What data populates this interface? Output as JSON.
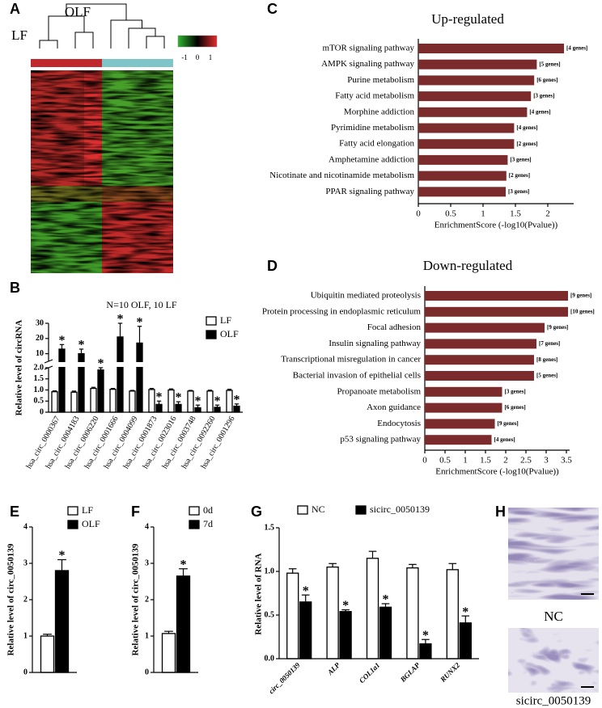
{
  "heatmap": {
    "panel": "A",
    "groups": [
      "LF",
      "OLF"
    ],
    "colorbar_lim": [
      -1.5,
      1.5
    ],
    "colorbar_ticks": [
      -1,
      0,
      1
    ]
  },
  "chart_data": [
    {
      "type": "bar",
      "panel": "B",
      "subtitle": "N=10 OLF, 10 LF",
      "ylabel": "Relative level of circRNA",
      "categories": [
        "hsa_circ_0000367",
        "hsa_circ_0004183",
        "hsa_circ_0006220",
        "hsa_circ_0001666",
        "hsa_circ_0004099",
        "hsa_circ_0001873",
        "hsa_circ_0023016",
        "hsa_circ_0003748",
        "hsa_circ_0092260",
        "hsa_circ_0001296"
      ],
      "series": [
        {
          "name": "LF",
          "color": "#ffffff",
          "values": [
            0.92,
            0.9,
            1.07,
            1.03,
            0.95,
            1.02,
            1.0,
            0.95,
            0.95,
            0.98
          ],
          "errors": [
            0.04,
            0.05,
            0.05,
            0.04,
            0.03,
            0.05,
            0.05,
            0.03,
            0.04,
            0.05
          ]
        },
        {
          "name": "OLF",
          "color": "#000000",
          "values": [
            13,
            10,
            1.9,
            21,
            17,
            0.35,
            0.35,
            0.2,
            0.22,
            0.27
          ],
          "errors": [
            3,
            3,
            0.1,
            9,
            11,
            0.15,
            0.12,
            0.12,
            0.1,
            0.1
          ],
          "sig_labels": [
            "*",
            "*",
            "*",
            "*",
            "*",
            "*",
            "*",
            "*",
            "*",
            "*"
          ]
        }
      ],
      "ylim": [
        0,
        30
      ],
      "ybreak": [
        2,
        5
      ],
      "yticks": [
        0,
        0.5,
        {
          "value": 1,
          "label": "1.0"
        },
        1.5,
        {
          "value": 2,
          "label": "2.0"
        },
        10,
        20,
        30
      ],
      "legend": "upper right"
    },
    {
      "type": "hbar",
      "panel": "C",
      "title": "Up-regulated",
      "xlabel": "EnrichmentScore (-log10(Pvalue))",
      "categories": [
        "mTOR signaling pathway",
        "AMPK signaling pathway",
        "Purine metabolism",
        "Fatty acid metabolism",
        "Morphine addiction",
        "Pyrimidine metabolism",
        "Fatty acid elongation",
        "Amphetamine addiction",
        "Nicotinate and nicotinamide metabolism",
        "PPAR signaling pathway"
      ],
      "values": [
        2.25,
        1.83,
        1.79,
        1.74,
        1.68,
        1.48,
        1.48,
        1.38,
        1.36,
        1.35
      ],
      "annotations": [
        "[4 genes]",
        "[5 genes]",
        "[6 genes]",
        "[3 genes]",
        "[4 genes]",
        "[4 genes]",
        "[2 genes]",
        "[3 genes]",
        "[2 genes]",
        "[3 genes]"
      ],
      "color": "#7b2b2b",
      "xlim": [
        0,
        2.4
      ],
      "xticks": [
        0,
        0.5,
        1,
        1.5,
        2
      ]
    },
    {
      "type": "hbar",
      "panel": "D",
      "title": "Down-regulated",
      "xlabel": "EnrichmentScore (-log10(Pvalue))",
      "categories": [
        "Ubiquitin mediated proteolysis",
        "Protein processing in endoplasmic reticulum",
        "Focal adhesion",
        "Insulin signaling pathway",
        "Transcriptional misregulation in cancer",
        "Bacterial invasion of epithelial cells",
        "Propanoate metabolism",
        "Axon guidance",
        "Endocytosis",
        "p53 signaling pathway"
      ],
      "values": [
        3.54,
        3.54,
        2.96,
        2.76,
        2.7,
        2.7,
        1.91,
        1.91,
        1.73,
        1.65
      ],
      "annotations": [
        "[9 genes]",
        "[10 genes]",
        "[9 genes]",
        "[7 genes]",
        "[8 genes]",
        "[5 genes]",
        "[3 genes]",
        "[6 genes]",
        "[9 genes]",
        "[4 genes]"
      ],
      "color": "#7b2b2b",
      "xlim": [
        0,
        3.58
      ],
      "xticks": [
        0,
        0.5,
        1,
        1.5,
        2,
        2.5,
        3,
        3.5
      ]
    },
    {
      "type": "bar",
      "panel": "E",
      "ylabel": "Relative level of circ_0050139",
      "series": [
        {
          "name": "LF",
          "color": "#ffffff",
          "values": [
            1.0
          ],
          "errors": [
            0.05
          ]
        },
        {
          "name": "OLF",
          "color": "#000000",
          "values": [
            2.8
          ],
          "errors": [
            0.3
          ],
          "sig_labels": [
            "*"
          ]
        }
      ],
      "ylim": [
        0,
        4
      ],
      "yticks": [
        0,
        1,
        2,
        3,
        4
      ],
      "legend": "upper right"
    },
    {
      "type": "bar",
      "panel": "F",
      "ylabel": "Relative level of circ_0050139",
      "series": [
        {
          "name": "0d",
          "color": "#ffffff",
          "values": [
            1.07
          ],
          "errors": [
            0.06
          ]
        },
        {
          "name": "7d",
          "color": "#000000",
          "values": [
            2.65
          ],
          "errors": [
            0.2
          ],
          "sig_labels": [
            "*"
          ]
        }
      ],
      "ylim": [
        0,
        4
      ],
      "yticks": [
        0,
        1,
        2,
        3,
        4
      ],
      "legend": "upper right"
    },
    {
      "type": "bar",
      "panel": "G",
      "ylabel": "Relative level of RNA",
      "categories": [
        "circ_0050139",
        "ALP",
        "COL1a1",
        "BGLAP",
        "RUNX2"
      ],
      "series": [
        {
          "name": "NC",
          "color": "#ffffff",
          "values": [
            0.98,
            1.05,
            1.15,
            1.04,
            1.02
          ],
          "errors": [
            0.05,
            0.04,
            0.08,
            0.04,
            0.07
          ]
        },
        {
          "name": "sicirc_0050139",
          "color": "#000000",
          "values": [
            0.65,
            0.54,
            0.59,
            0.17,
            0.41
          ],
          "errors": [
            0.08,
            0.02,
            0.04,
            0.05,
            0.08
          ],
          "sig_labels": [
            "*",
            "*",
            "*",
            "*",
            "*"
          ]
        }
      ],
      "ylim": [
        0,
        1.5
      ],
      "yticks": [
        {
          "value": 0,
          "label": "0.0"
        },
        0.5,
        {
          "value": 1,
          "label": "1.0"
        },
        1.5
      ],
      "legend": "top"
    }
  ],
  "micrographs": {
    "panel": "H",
    "labels": [
      "NC",
      "sicirc_0050139"
    ]
  }
}
